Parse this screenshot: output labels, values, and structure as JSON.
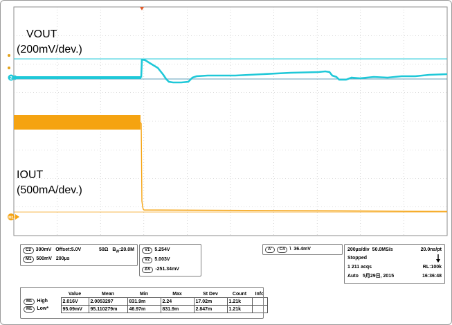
{
  "waveform_labels": {
    "vout_title": "VOUT",
    "vout_scale": "(200mV/dev.)",
    "iout_title": "IOUT",
    "iout_scale": "(500mA/dev.)"
  },
  "channel_info": {
    "c2_badge": "C2",
    "c2_scale": "300mV",
    "c2_offset": "Offset:5.0V",
    "c2_imp": "50Ω",
    "c2_bw": "B",
    "c2_bw_sub": "W",
    "c2_bw_val": ":20.0M",
    "m1_badge": "M1",
    "m1_scale": "500mV",
    "m1_time": "200µs"
  },
  "cursors": {
    "v1_badge": "V1",
    "v1_value": "5.254V",
    "v2_badge": "V2",
    "v2_value": "5.003V",
    "dv_badge": "ΔV",
    "dv_value": "-251.34mV"
  },
  "trigger": {
    "a_badge": "A'",
    "c4_badge": "C4",
    "slope_symbol": "\\",
    "level": "36.4mV"
  },
  "acquisition": {
    "timebase": "200µs/div",
    "sample_rate": "50.0MS/s",
    "resolution": "20.0ns/pt",
    "state": "Stopped",
    "acqs": "1 211 acqs",
    "record": "RL:100k",
    "mode": "Auto",
    "date": "5月29日, 2015",
    "time": "16:36:48"
  },
  "measurements": {
    "headers": [
      "Value",
      "Mean",
      "Min",
      "Max",
      "St Dev",
      "Count",
      "Info"
    ],
    "rows": [
      {
        "badge": "M1",
        "name": "High",
        "value": "2.016V",
        "mean": "2.0053297",
        "min": "831.9m",
        "max": "2.24",
        "stdev": "17.02m",
        "count": "1.21k",
        "info": ""
      },
      {
        "badge": "M1",
        "name": "Low*",
        "value": "95.09mV",
        "mean": "95.110279m",
        "min": "46.97m",
        "max": "831.9m",
        "stdev": "2.847m",
        "count": "1.21k",
        "info": ""
      }
    ]
  },
  "colors": {
    "vout_trace": "#1fc8d8",
    "iout_trace": "#f5a311",
    "grid": "#b8b8b8"
  }
}
